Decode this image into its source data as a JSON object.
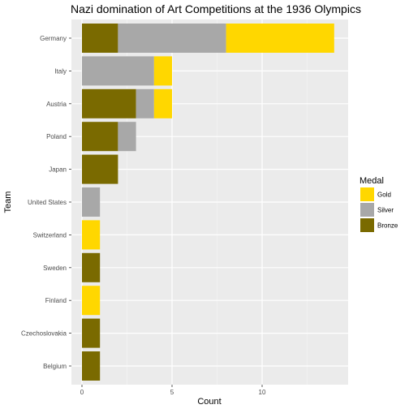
{
  "chart_data": {
    "type": "bar",
    "orientation": "horizontal",
    "stacked": true,
    "title": "Nazi domination of Art Competitions at the 1936 Olympics",
    "xlabel": "Count",
    "ylabel": "Team",
    "xlim": [
      0,
      14
    ],
    "x_ticks": [
      0,
      5,
      10
    ],
    "grid": true,
    "legend": {
      "title": "Medal",
      "position": "right"
    },
    "categories": [
      "Germany",
      "Italy",
      "Austria",
      "Poland",
      "Japan",
      "United States",
      "Switzerland",
      "Sweden",
      "Finland",
      "Czechoslovakia",
      "Belgium"
    ],
    "series": [
      {
        "name": "Bronze",
        "color": "#7a6a00",
        "values": [
          2,
          0,
          3,
          2,
          2,
          0,
          0,
          1,
          0,
          1,
          1
        ]
      },
      {
        "name": "Silver",
        "color": "#a8a8a8",
        "values": [
          6,
          4,
          1,
          1,
          0,
          1,
          0,
          0,
          0,
          0,
          0
        ]
      },
      {
        "name": "Gold",
        "color": "#ffd700",
        "values": [
          6,
          1,
          1,
          0,
          0,
          0,
          1,
          0,
          1,
          0,
          0
        ]
      }
    ],
    "legend_order": [
      "Gold",
      "Silver",
      "Bronze"
    ]
  }
}
